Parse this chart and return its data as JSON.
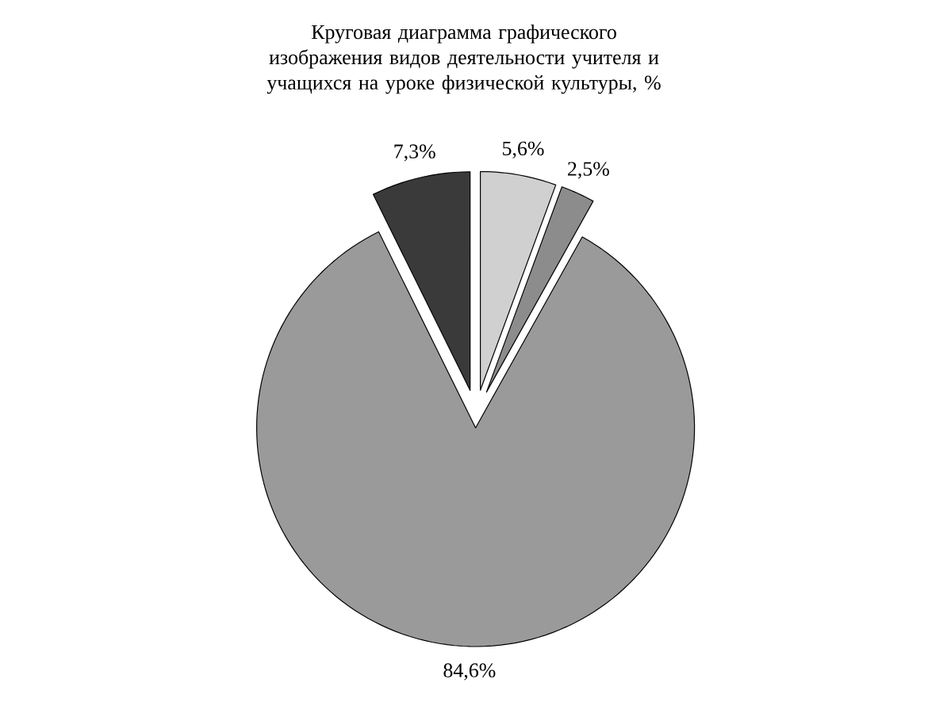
{
  "chart_data": {
    "type": "pie",
    "title": "Круговая диаграмма графического изображения видов деятельности учителя и учащихся на уроке физической культуры, %",
    "categories": [
      null,
      null,
      null,
      null
    ],
    "values": [
      5.6,
      2.5,
      84.6,
      7.3
    ],
    "colors": [
      "#d0d0d0",
      "#8c8c8c",
      "#9a9a9a",
      "#3a3a3a"
    ],
    "value_labels": [
      "5,6%",
      "2,5%",
      "84,6%",
      "7,3%"
    ]
  }
}
